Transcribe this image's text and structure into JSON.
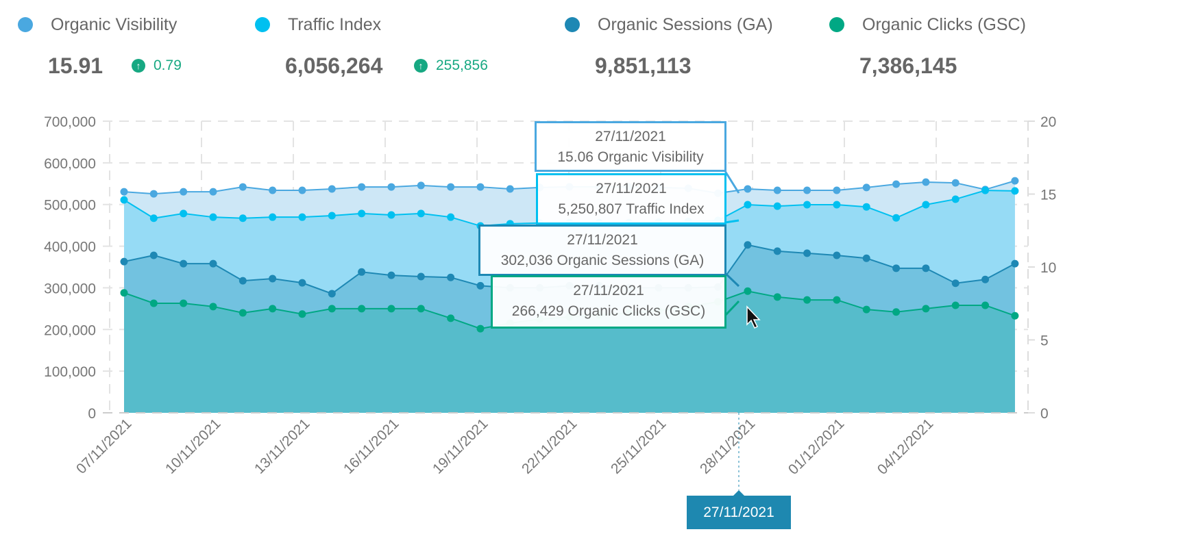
{
  "kpis": [
    {
      "label": "Organic Visibility",
      "value": "15.91",
      "change": "0.79",
      "color": "#4aa8e0"
    },
    {
      "label": "Traffic Index",
      "value": "6,056,264",
      "change": "255,856",
      "color": "#00c0f0"
    },
    {
      "label": "Organic Sessions (GA)",
      "value": "9,851,113",
      "color": "#1e88b4"
    },
    {
      "label": "Organic Clicks (GSC)",
      "value": "7,386,145",
      "color": "#00a884"
    }
  ],
  "tooltip": {
    "date": "27/11/2021",
    "visibility": "15.06 Organic Visibility",
    "traffic": "5,250,807 Traffic Index",
    "sessions": "302,036 Organic Sessions (GA)",
    "clicks": "266,429 Organic Clicks (GSC)"
  },
  "chart_data": {
    "type": "area",
    "x": [
      "07/11/2021",
      "08/11/2021",
      "09/11/2021",
      "10/11/2021",
      "11/11/2021",
      "12/11/2021",
      "13/11/2021",
      "14/11/2021",
      "15/11/2021",
      "16/11/2021",
      "17/11/2021",
      "18/11/2021",
      "19/11/2021",
      "20/11/2021",
      "21/11/2021",
      "22/11/2021",
      "23/11/2021",
      "24/11/2021",
      "25/11/2021",
      "26/11/2021",
      "27/11/2021",
      "28/11/2021",
      "29/11/2021",
      "30/11/2021",
      "01/12/2021",
      "02/12/2021",
      "03/12/2021",
      "04/12/2021",
      "05/12/2021",
      "06/12/2021",
      "07/12/2021"
    ],
    "x_tick_labels": [
      "07/11/2021",
      "10/11/2021",
      "13/11/2021",
      "16/11/2021",
      "19/11/2021",
      "22/11/2021",
      "25/11/2021",
      "28/11/2021",
      "01/12/2021",
      "04/12/2021"
    ],
    "y_left": {
      "range": [
        0,
        700000
      ],
      "ticks": [
        "0",
        "100,000",
        "200,000",
        "300,000",
        "400,000",
        "500,000",
        "600,000",
        "700,000"
      ]
    },
    "y_right": {
      "range": [
        0,
        20
      ],
      "ticks": [
        "0",
        "5",
        "10",
        "15",
        "20"
      ]
    },
    "grid": true,
    "legend": "top",
    "series": [
      {
        "name": "Organic Visibility",
        "axis": "right",
        "color": "#4aa8e0",
        "fill": "#cde7f6",
        "values": [
          15.16,
          15.02,
          15.16,
          15.16,
          15.49,
          15.26,
          15.26,
          15.35,
          15.49,
          15.49,
          15.59,
          15.49,
          15.49,
          15.35,
          15.45,
          15.5,
          15.5,
          15.5,
          15.45,
          15.4,
          15.06,
          15.35,
          15.26,
          15.26,
          15.26,
          15.45,
          15.68,
          15.82,
          15.77,
          15.31,
          15.91
        ]
      },
      {
        "name": "Traffic Index",
        "axis": "hidden",
        "color": "#00c0f0",
        "fill": "#96dbf5",
        "values": [
          5810000,
          5310000,
          5440000,
          5340000,
          5310000,
          5340000,
          5340000,
          5380000,
          5440000,
          5400000,
          5440000,
          5340000,
          5100000,
          5160000,
          5180000,
          5190000,
          5190000,
          5190000,
          5200000,
          5220000,
          5250807,
          5680000,
          5640000,
          5680000,
          5680000,
          5620000,
          5320000,
          5680000,
          5830000,
          6070000,
          6056264
        ]
      },
      {
        "name": "Organic Sessions (GA)",
        "axis": "left",
        "color": "#1e88b4",
        "fill": "#72c2e0",
        "values": [
          363000,
          378000,
          358000,
          358000,
          317000,
          322000,
          312000,
          286000,
          338000,
          330000,
          327000,
          325000,
          305000,
          300000,
          300000,
          305000,
          305000,
          300000,
          300000,
          300000,
          302036,
          403000,
          388000,
          383000,
          378000,
          371000,
          347000,
          347000,
          311000,
          320000,
          358000
        ]
      },
      {
        "name": "Organic Clicks (GSC)",
        "axis": "left",
        "color": "#00a884",
        "fill": "#56bccb",
        "values": [
          288000,
          263000,
          263000,
          255000,
          240000,
          250000,
          237000,
          250000,
          250000,
          250000,
          250000,
          227000,
          202000,
          215000,
          225000,
          230000,
          235000,
          240000,
          245000,
          255000,
          266429,
          292000,
          278000,
          271000,
          271000,
          248000,
          242000,
          250000,
          258000,
          258000,
          233000
        ]
      }
    ]
  }
}
